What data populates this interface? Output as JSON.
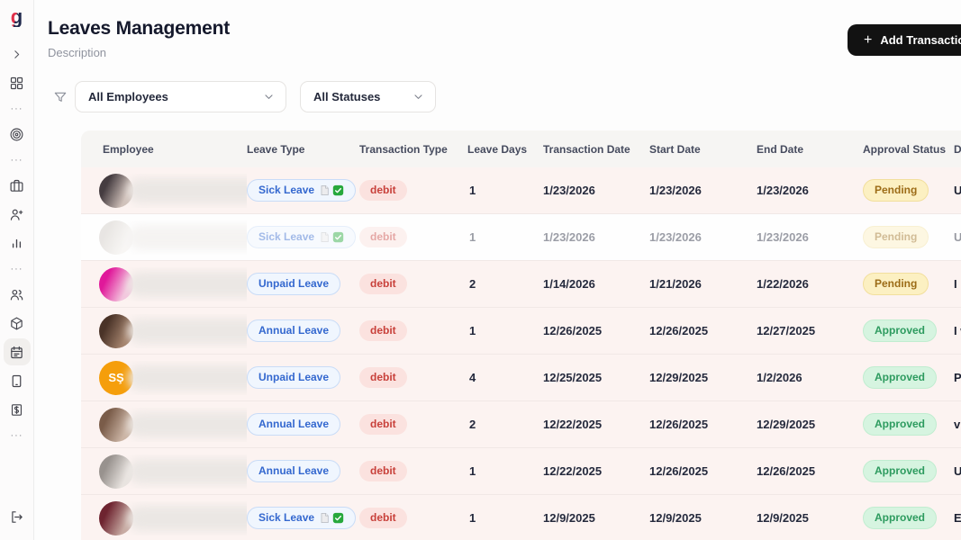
{
  "sidebar": {
    "logo_text": "g",
    "logo_colors": {
      "red": "#e0314b",
      "navy": "#20284b"
    },
    "items": [
      {
        "icon": "chevron-right",
        "active": false
      },
      {
        "icon": "dashboard",
        "active": false
      },
      {
        "icon": "more",
        "active": false
      },
      {
        "icon": "target",
        "active": false
      },
      {
        "icon": "more",
        "active": false
      },
      {
        "icon": "briefcase",
        "active": false
      },
      {
        "icon": "user-plus",
        "active": false
      },
      {
        "icon": "bar-chart",
        "active": false
      },
      {
        "icon": "more",
        "active": false
      },
      {
        "icon": "users",
        "active": false
      },
      {
        "icon": "package",
        "active": false
      },
      {
        "icon": "calendar",
        "active": true
      },
      {
        "icon": "tablet",
        "active": false
      },
      {
        "icon": "invoice",
        "active": false
      },
      {
        "icon": "more",
        "active": false
      },
      {
        "icon": "logout",
        "active": false,
        "bottom": true
      }
    ],
    "more_glyph": "···"
  },
  "header": {
    "title": "Leaves Management",
    "subtitle": "Description",
    "add_button_label": "Add Transaction",
    "add_button_icon": "plus",
    "add_button_color": "#121212"
  },
  "filters": {
    "filter_icon": "funnel",
    "employee_filter": {
      "value": "All Employees",
      "caret_icon": "chevron-down"
    },
    "status_filter": {
      "value": "All Statuses",
      "caret_icon": "chevron-down"
    }
  },
  "table": {
    "columns": [
      "Employee",
      "Leave Type",
      "Transaction Type",
      "Leave Days",
      "Transaction Date",
      "Start Date",
      "End Date",
      "Approval Status",
      "Description"
    ],
    "status_colors": {
      "Pending": "#9c6c17",
      "Approved": "#2d9b5f",
      "debit": "#c8403a",
      "leave": "#3468cf"
    },
    "leave_type_flag_icons": [
      "document-page",
      "green-check"
    ],
    "rows": [
      {
        "leave_type": "Sick Leave",
        "leave_type_attachment": true,
        "transaction_type": "debit",
        "leave_days": "1",
        "transaction_date": "1/23/2026",
        "start_date": "1/23/2026",
        "end_date": "1/23/2026",
        "approval_status": "Pending",
        "description": "Unfortun",
        "name_suffix": "n",
        "name_width": 296,
        "faded": false,
        "tinted": true,
        "avatar": {
          "type": "photo",
          "colors": [
            "#453c40",
            "#d0c1ba"
          ]
        }
      },
      {
        "leave_type": "Sick Leave",
        "leave_type_attachment": true,
        "transaction_type": "debit",
        "leave_days": "1",
        "transaction_date": "1/23/2026",
        "start_date": "1/23/2026",
        "end_date": "1/23/2026",
        "approval_status": "Pending",
        "description": "Unfortun",
        "name_suffix": "n",
        "name_width": 296,
        "faded": true,
        "tinted": false,
        "avatar": {
          "type": "photo",
          "colors": [
            "#cfc9c3",
            "#f2eeea"
          ]
        }
      },
      {
        "leave_type": "Unpaid Leave",
        "leave_type_attachment": false,
        "transaction_type": "debit",
        "leave_days": "2",
        "transaction_date": "1/14/2026",
        "start_date": "1/21/2026",
        "end_date": "1/22/2026",
        "approval_status": "Pending",
        "description": "I need to",
        "name_suffix": "",
        "name_width": 280,
        "faded": false,
        "tinted": true,
        "avatar": {
          "type": "photo",
          "colors": [
            "#e0189a",
            "#f3c7de"
          ]
        }
      },
      {
        "leave_type": "Annual Leave",
        "leave_type_attachment": false,
        "transaction_type": "debit",
        "leave_days": "1",
        "transaction_date": "12/26/2025",
        "start_date": "12/26/2025",
        "end_date": "12/27/2025",
        "approval_status": "Approved",
        "description": "I wouldn",
        "name_suffix": "",
        "name_width": 350,
        "faded": false,
        "tinted": true,
        "avatar": {
          "type": "photo",
          "colors": [
            "#4a3328",
            "#a4836d"
          ]
        }
      },
      {
        "leave_type": "Unpaid Leave",
        "leave_type_attachment": false,
        "transaction_type": "debit",
        "leave_days": "4",
        "transaction_date": "12/25/2025",
        "start_date": "12/29/2025",
        "end_date": "1/2/2026",
        "approval_status": "Approved",
        "description": "Personal",
        "name_suffix": "e",
        "name_width": 300,
        "faded": false,
        "tinted": true,
        "avatar": {
          "type": "initials",
          "text": "SŞ",
          "bg": "#f59e0b"
        }
      },
      {
        "leave_type": "Annual Leave",
        "leave_type_attachment": false,
        "transaction_type": "debit",
        "leave_days": "2",
        "transaction_date": "12/22/2025",
        "start_date": "12/26/2025",
        "end_date": "12/29/2025",
        "approval_status": "Approved",
        "description": "visiting r",
        "name_suffix": "",
        "name_width": 340,
        "faded": false,
        "tinted": true,
        "avatar": {
          "type": "photo",
          "colors": [
            "#7a5c49",
            "#cbb4a4"
          ]
        }
      },
      {
        "leave_type": "Annual Leave",
        "leave_type_attachment": false,
        "transaction_type": "debit",
        "leave_days": "1",
        "transaction_date": "12/22/2025",
        "start_date": "12/26/2025",
        "end_date": "12/26/2025",
        "approval_status": "Approved",
        "description": "Using an",
        "name_suffix": "",
        "name_width": 320,
        "faded": false,
        "tinted": true,
        "avatar": {
          "type": "photo",
          "colors": [
            "#98928e",
            "#e9e4e0"
          ]
        }
      },
      {
        "leave_type": "Sick Leave",
        "leave_type_attachment": true,
        "transaction_type": "debit",
        "leave_days": "1",
        "transaction_date": "12/9/2025",
        "start_date": "12/9/2025",
        "end_date": "12/9/2025",
        "approval_status": "Approved",
        "description": "Extension",
        "name_suffix": "",
        "name_width": 265,
        "faded": false,
        "tinted": true,
        "avatar": {
          "type": "photo",
          "colors": [
            "#6e2430",
            "#c7aaa2"
          ]
        }
      }
    ]
  }
}
